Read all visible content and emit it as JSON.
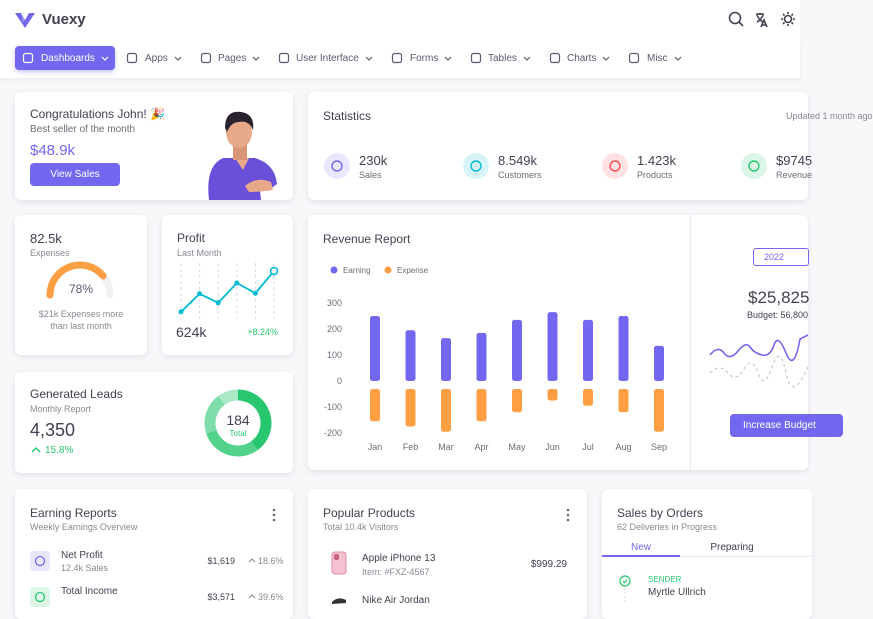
{
  "header": {
    "brand": "Vuexy"
  },
  "nav": [
    "Dashboards",
    "Apps",
    "Pages",
    "User Interface",
    "Forms",
    "Tables",
    "Charts",
    "Misc"
  ],
  "congrats": {
    "title": "Congratulations John! 🎉",
    "subtitle": "Best seller of the month",
    "amount": "$48.9k",
    "button": "View Sales"
  },
  "statistics": {
    "title": "Statistics",
    "updated": "Updated 1 month ago",
    "items": [
      {
        "value": "230k",
        "label": "Sales",
        "color": "#7367f0"
      },
      {
        "value": "8.549k",
        "label": "Customers",
        "color": "#00bad1"
      },
      {
        "value": "1.423k",
        "label": "Products",
        "color": "#ff4c51"
      },
      {
        "value": "$9745",
        "label": "Revenue",
        "color": "#28c76f"
      }
    ]
  },
  "expenses": {
    "value": "82.5k",
    "label": "Expenses",
    "gauge": {
      "value": 78,
      "label": "78%",
      "max": 100,
      "color": "#ff9f43"
    },
    "note": "$21k Expenses more than last month"
  },
  "profit": {
    "title": "Profit",
    "subtitle": "Last Month",
    "chart": {
      "type": "line",
      "values": [
        17,
        47,
        32,
        65,
        48,
        85
      ],
      "ylim": [
        0,
        100
      ],
      "color": "#00bad1"
    },
    "value": "624k",
    "change": "+8.24%"
  },
  "leads": {
    "title": "Generated Leads",
    "subtitle": "Monthly Report",
    "value": "4,350",
    "change": "15.8%",
    "donut": {
      "type": "pie",
      "values": [
        40,
        30,
        20,
        10
      ],
      "colors": [
        "#28c76f",
        "#53d28c",
        "#7eddaa",
        "#a9e9c5"
      ],
      "total": "184",
      "total_label": "Total"
    }
  },
  "revenue": {
    "title": "Revenue Report",
    "chart": {
      "type": "bar",
      "categories": [
        "Jan",
        "Feb",
        "Mar",
        "Apr",
        "May",
        "Jun",
        "Jul",
        "Aug",
        "Sep"
      ],
      "series": [
        {
          "name": "Earning",
          "color": "#7367f0",
          "values": [
            250,
            195,
            165,
            185,
            235,
            265,
            235,
            250,
            135
          ]
        },
        {
          "name": "Expense",
          "color": "#ff9f43",
          "values": [
            -155,
            -175,
            -195,
            -155,
            -120,
            -75,
            -95,
            -120,
            -195
          ]
        }
      ],
      "ylim": [
        -200,
        300
      ],
      "yticks": [
        300,
        200,
        100,
        0,
        -100,
        -200
      ]
    },
    "year": "2022",
    "amount": "$25,825",
    "budget": "Budget: 56,800",
    "button": "Increase Budget"
  },
  "earning_reports": {
    "title": "Earning Reports",
    "subtitle": "Weekly Earnings Overview",
    "rows": [
      {
        "title": "Net Profit",
        "subtitle": "12.4k Sales",
        "amount": "$1,619",
        "change": "18.6%"
      },
      {
        "title": "Total Income",
        "amount": "$3,571",
        "change": "39.6%"
      }
    ]
  },
  "popular_products": {
    "title": "Popular Products",
    "subtitle": "Total 10.4k Visitors",
    "items": [
      {
        "name": "Apple iPhone 13",
        "item": "Item: #FXZ-4567",
        "price": "$999.29"
      },
      {
        "name": "Nike Air Jordan"
      }
    ]
  },
  "sales_orders": {
    "title": "Sales by Orders",
    "subtitle": "62 Deliveries in Progress",
    "tabs": [
      "New",
      "Preparing"
    ],
    "sender_label": "SENDER",
    "sender": "Myrtle Ullrich"
  }
}
